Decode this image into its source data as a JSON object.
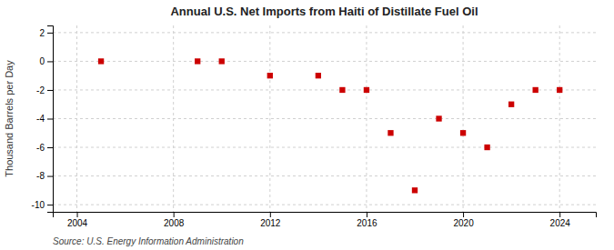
{
  "chart_data": {
    "type": "scatter",
    "title": "Annual U.S. Net Imports from Haiti of Distillate Fuel Oil",
    "ylabel": "Thousand Barrels per Day",
    "source": "Source: U.S. Energy Information Administration",
    "x": [
      2005,
      2009,
      2010,
      2012,
      2014,
      2015,
      2016,
      2017,
      2018,
      2019,
      2020,
      2021,
      2022,
      2023,
      2024
    ],
    "values": [
      0,
      0,
      0,
      -1,
      -1,
      -2,
      -2,
      -5,
      -9,
      -4,
      -5,
      -6,
      -3,
      -2,
      -2
    ],
    "color": "#cc0000",
    "marker": "square",
    "xlim": [
      2003.0,
      2025.5
    ],
    "ylim": [
      -10.5,
      2.5
    ],
    "xticks": [
      2004,
      2008,
      2012,
      2016,
      2020,
      2024
    ],
    "yticks": [
      2,
      0,
      -2,
      -4,
      -6,
      -8,
      -10
    ],
    "grid": true
  }
}
